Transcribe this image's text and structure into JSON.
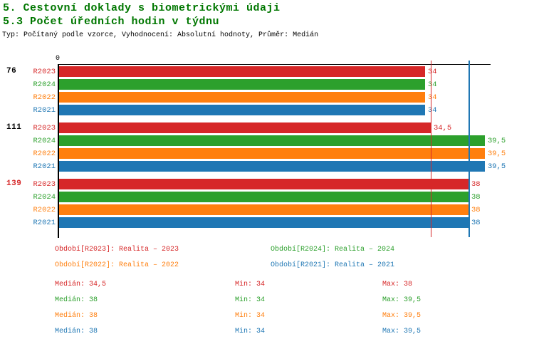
{
  "header": {
    "title": "5. Cestovní doklady s biometrickými údaji",
    "subtitle": "5.3 Počet úředních hodin v týdnu",
    "meta": "Typ: Počítaný podle vzorce, Vyhodnocení: Absolutní hodnoty, Průměr: Medián",
    "title_color": "#007700"
  },
  "chart_data": {
    "type": "bar",
    "orientation": "horizontal",
    "title": "5.3 Počet úředních hodin v týdnu",
    "value_axis": {
      "zero_label": "0",
      "xlim": [
        0,
        39.9
      ],
      "grid": false
    },
    "series_order": [
      "R2023",
      "R2024",
      "R2022",
      "R2021"
    ],
    "series_colors": {
      "R2023": "#d62728",
      "R2024": "#2ca02c",
      "R2022": "#ff7f0e",
      "R2021": "#1f77b4"
    },
    "groups": [
      {
        "label": "76",
        "label_color": "#000000",
        "bars": [
          {
            "series": "R2023",
            "value": 34,
            "display": "34"
          },
          {
            "series": "R2024",
            "value": 34,
            "display": "34"
          },
          {
            "series": "R2022",
            "value": 34,
            "display": "34"
          },
          {
            "series": "R2021",
            "value": 34,
            "display": "34"
          }
        ]
      },
      {
        "label": "111",
        "label_color": "#000000",
        "bars": [
          {
            "series": "R2023",
            "value": 34.5,
            "display": "34,5"
          },
          {
            "series": "R2024",
            "value": 39.5,
            "display": "39,5"
          },
          {
            "series": "R2022",
            "value": 39.5,
            "display": "39,5"
          },
          {
            "series": "R2021",
            "value": 39.5,
            "display": "39,5"
          }
        ]
      },
      {
        "label": "139",
        "label_color": "#d62728",
        "bars": [
          {
            "series": "R2023",
            "value": 38,
            "display": "38"
          },
          {
            "series": "R2024",
            "value": 38,
            "display": "38"
          },
          {
            "series": "R2022",
            "value": 38,
            "display": "38"
          },
          {
            "series": "R2021",
            "value": 38,
            "display": "38"
          }
        ]
      }
    ],
    "reference_lines": [
      {
        "value": 34.5,
        "color": "#d62728",
        "width": 1
      },
      {
        "value": 38,
        "color": "#1f77b4",
        "width": 2
      }
    ]
  },
  "legend_items": [
    {
      "label": "Období[R2023]: Realita – 2023",
      "color": "#d62728",
      "row": 0,
      "col": 0
    },
    {
      "label": "Období[R2024]: Realita – 2024",
      "color": "#2ca02c",
      "row": 0,
      "col": 1
    },
    {
      "label": "Období[R2022]: Realita – 2022",
      "color": "#ff7f0e",
      "row": 1,
      "col": 0
    },
    {
      "label": "Období[R2021]: Realita – 2021",
      "color": "#1f77b4",
      "row": 1,
      "col": 1
    }
  ],
  "stats_rows": [
    {
      "color": "#d62728",
      "cells": [
        "Medián: 34,5",
        "Min: 34",
        "Max: 38"
      ]
    },
    {
      "color": "#2ca02c",
      "cells": [
        "Medián: 38",
        "Min: 34",
        "Max: 39,5"
      ]
    },
    {
      "color": "#ff7f0e",
      "cells": [
        "Medián: 38",
        "Min: 34",
        "Max: 39,5"
      ]
    },
    {
      "color": "#1f77b4",
      "cells": [
        "Medián: 38",
        "Min: 34",
        "Max: 39,5"
      ]
    }
  ]
}
